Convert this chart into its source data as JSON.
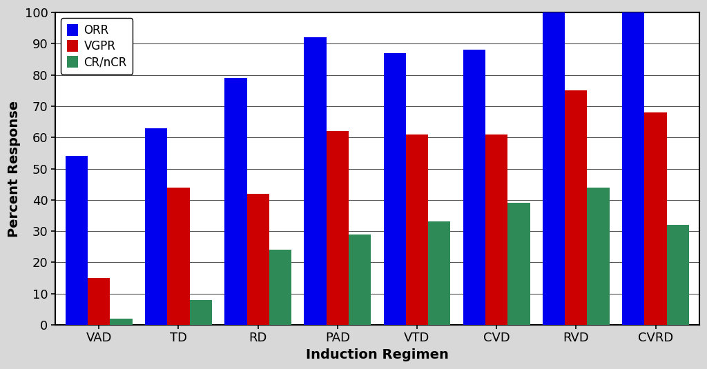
{
  "categories": [
    "VAD",
    "TD",
    "RD",
    "PAD",
    "VTD",
    "CVD",
    "RVD",
    "CVRD"
  ],
  "series": {
    "ORR": [
      54,
      63,
      79,
      92,
      87,
      88,
      100,
      100
    ],
    "VGPR": [
      15,
      44,
      42,
      62,
      61,
      61,
      75,
      68
    ],
    "CR/nCR": [
      2,
      8,
      24,
      29,
      33,
      39,
      44,
      32
    ]
  },
  "colors": {
    "ORR": "#0000EE",
    "VGPR": "#CC0000",
    "CR/nCR": "#2E8B57"
  },
  "legend_labels": [
    "ORR",
    "VGPR",
    "CR/nCR"
  ],
  "xlabel": "Induction Regimen",
  "ylabel": "Percent Response",
  "ylim": [
    0,
    100
  ],
  "yticks": [
    0,
    10,
    20,
    30,
    40,
    50,
    60,
    70,
    80,
    90,
    100
  ],
  "bar_width": 0.28,
  "background_color": "#D8D8D8",
  "plot_bg_color": "#FFFFFF",
  "grid_color": "#555555",
  "tick_fontsize": 13,
  "label_fontsize": 14,
  "legend_fontsize": 12
}
